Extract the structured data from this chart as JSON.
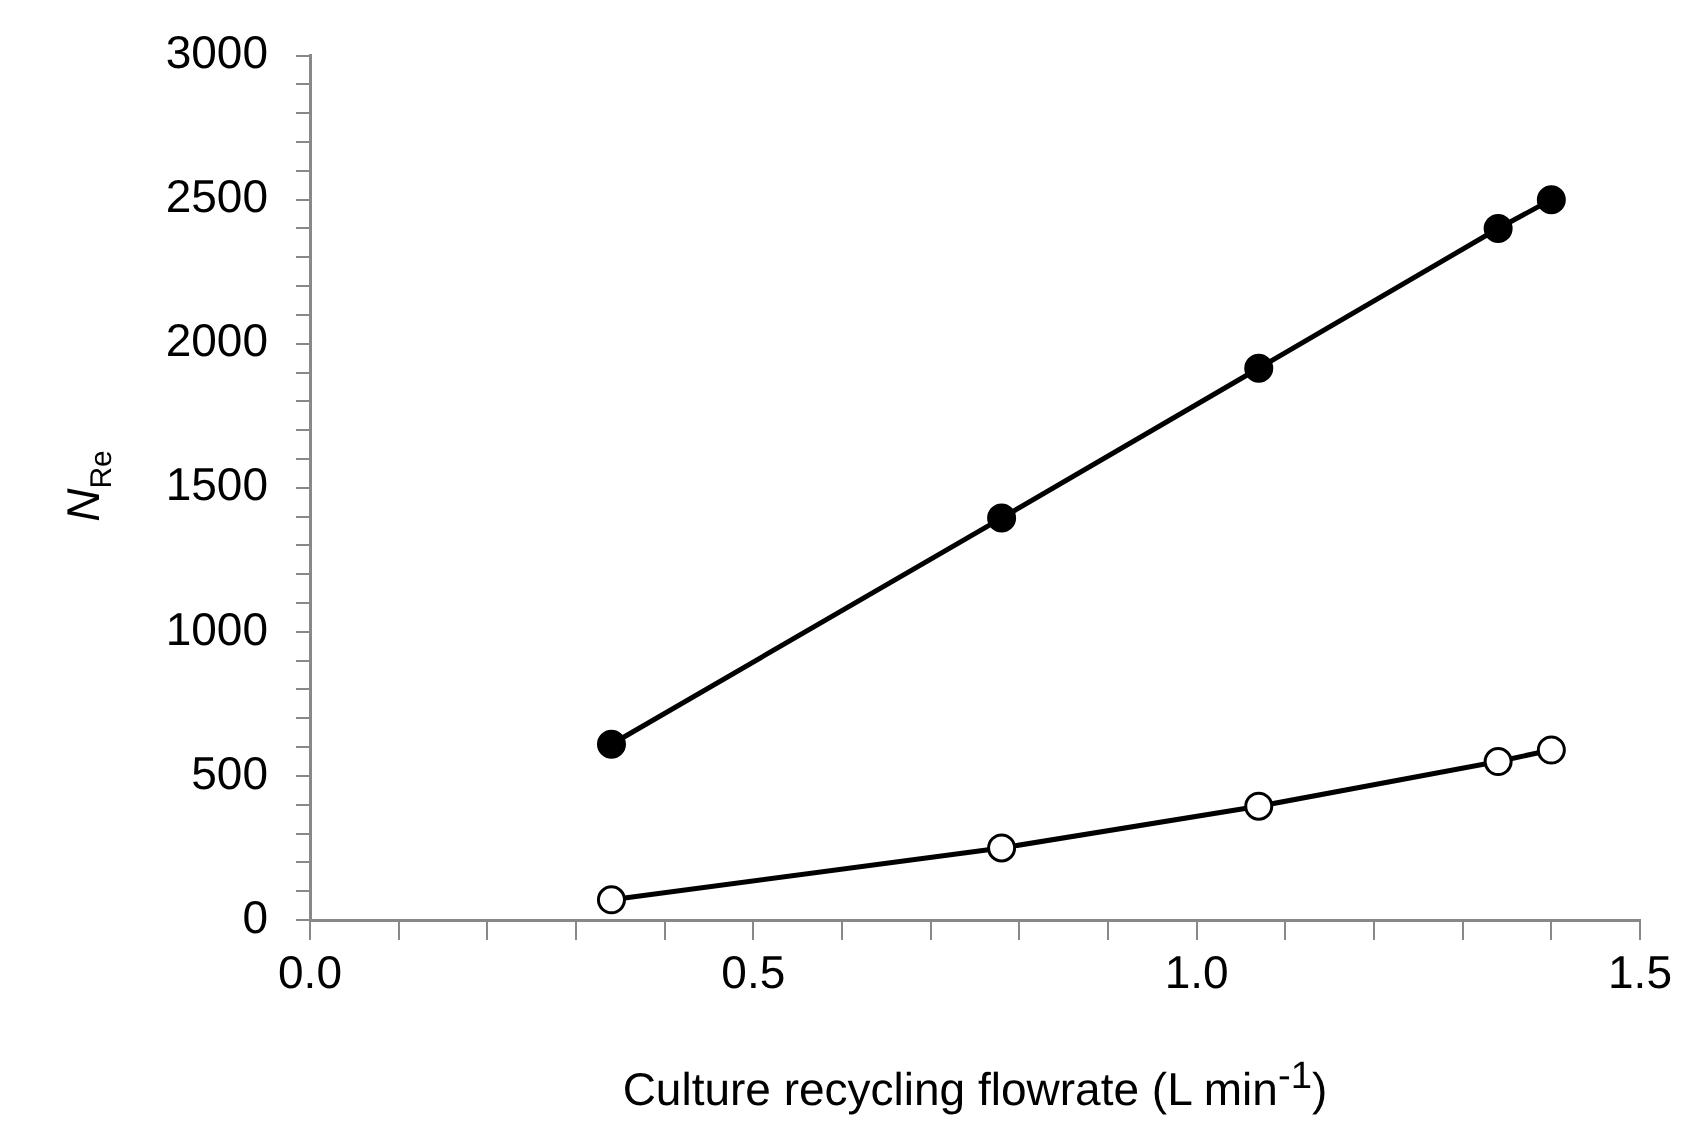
{
  "chart_data": {
    "type": "line",
    "xlabel": "Culture recycling flowrate (L min$^{-1}$)",
    "ylabel": "N$_{Re}$",
    "series": [
      {
        "color": "#000000",
        "x": [
          0.34,
          0.78,
          1.07,
          1.34,
          1.4
        ],
        "values": [
          610,
          1395,
          1915,
          2400,
          2500
        ]
      },
      {
        "color": "#000000",
        "x": [
          0.34,
          0.78,
          1.07,
          1.34,
          1.4
        ],
        "values": [
          70,
          250,
          395,
          550,
          590
        ]
      }
    ],
    "xlim": [
      0,
      1.5
    ],
    "xticks": [
      {
        "value": 0,
        "label": "0.0"
      },
      {
        "value": 0.1,
        "label": null
      },
      {
        "value": 0.2,
        "label": null
      },
      {
        "value": 0.3,
        "label": null
      },
      {
        "value": 0.4,
        "label": null
      },
      {
        "value": 0.5,
        "label": "0.5"
      },
      {
        "value": 0.6,
        "label": null
      },
      {
        "value": 0.7,
        "label": null
      },
      {
        "value": 0.8,
        "label": null
      },
      {
        "value": 0.9,
        "label": null
      },
      {
        "value": 1,
        "label": "1.0"
      },
      {
        "value": 1.1,
        "label": null
      },
      {
        "value": 1.2,
        "label": null
      },
      {
        "value": 1.3,
        "label": null
      },
      {
        "value": 1.4,
        "label": null
      },
      {
        "value": 1.5,
        "label": "1.5"
      }
    ],
    "ylim": [
      0,
      3000
    ],
    "yticks": [
      0,
      {
        "value": 100,
        "label": null
      },
      {
        "value": 200,
        "label": null
      },
      {
        "value": 300,
        "label": null
      },
      {
        "value": 400,
        "label": null
      },
      500,
      {
        "value": 600,
        "label": null
      },
      {
        "value": 700,
        "label": null
      },
      {
        "value": 800,
        "label": null
      },
      {
        "value": 900,
        "label": null
      },
      1000,
      {
        "value": 1100,
        "label": null
      },
      {
        "value": 1200,
        "label": null
      },
      {
        "value": 1300,
        "label": null
      },
      {
        "value": 1400,
        "label": null
      },
      1500,
      {
        "value": 1600,
        "label": null
      },
      {
        "value": 1700,
        "label": null
      },
      {
        "value": 1800,
        "label": null
      },
      {
        "value": 1900,
        "label": null
      },
      2000,
      {
        "value": 2100,
        "label": null
      },
      {
        "value": 2200,
        "label": null
      },
      {
        "value": 2300,
        "label": null
      },
      {
        "value": 2400,
        "label": null
      },
      2500,
      {
        "value": 2600,
        "label": null
      },
      {
        "value": 2700,
        "label": null
      },
      {
        "value": 2800,
        "label": null
      },
      {
        "value": 2900,
        "label": null
      },
      3000
    ],
    "grid": false,
    "legend": false,
    "marker": "circle",
    "line_style": "solid"
  }
}
